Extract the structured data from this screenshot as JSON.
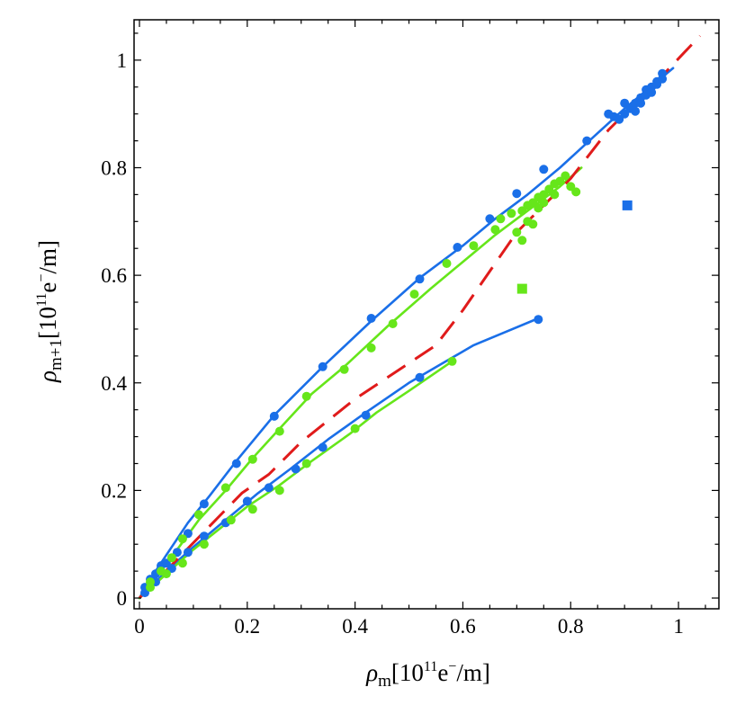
{
  "chart_data": {
    "type": "scatter",
    "xlabel": {
      "symbol": "ρ",
      "sub": "m",
      "unit_prefix": "[10",
      "exp": "11",
      "unit_body": "e",
      "charge": "−",
      "unit_suffix": "/m]"
    },
    "ylabel": {
      "symbol": "ρ",
      "sub": "m+1",
      "unit_prefix": "[10",
      "exp": "11",
      "unit_body": "e",
      "charge": "−",
      "unit_suffix": "/m]"
    },
    "xlim": [
      -0.01,
      1.075
    ],
    "ylim": [
      -0.02,
      1.075
    ],
    "x_ticks": [
      0,
      0.2,
      0.4,
      0.6,
      0.8,
      1
    ],
    "x_tick_labels": [
      "0",
      "0.2",
      "0.4",
      "0.6",
      "0.8",
      "1"
    ],
    "y_ticks": [
      0,
      0.2,
      0.4,
      0.6,
      0.8,
      1
    ],
    "y_tick_labels": [
      "0",
      "0.2",
      "0.4",
      "0.6",
      "0.8",
      "1"
    ],
    "colors": {
      "blue": "#1a6fe8",
      "green": "#66e61a",
      "red": "#e01b1b",
      "frame": "#000000"
    },
    "series": [
      {
        "name": "blue-upper-curve",
        "color": "#1a6fe8",
        "kind": "line",
        "x": [
          0,
          0.02,
          0.05,
          0.09,
          0.13,
          0.18,
          0.25,
          0.34,
          0.43,
          0.52,
          0.6,
          0.66,
          0.72,
          0.78,
          0.84,
          0.9,
          0.96,
          0.99
        ],
        "y": [
          0,
          0.035,
          0.08,
          0.14,
          0.19,
          0.255,
          0.34,
          0.43,
          0.515,
          0.595,
          0.655,
          0.705,
          0.75,
          0.8,
          0.855,
          0.91,
          0.96,
          0.985
        ]
      },
      {
        "name": "blue-upper-points",
        "color": "#1a6fe8",
        "kind": "points",
        "x": [
          0.01,
          0.02,
          0.03,
          0.04,
          0.05,
          0.07,
          0.09,
          0.12,
          0.18,
          0.25,
          0.34,
          0.43,
          0.52,
          0.59,
          0.65,
          0.7,
          0.75,
          0.83,
          0.87,
          0.88,
          0.89,
          0.9,
          0.9,
          0.91,
          0.92,
          0.92,
          0.93,
          0.93,
          0.94,
          0.94,
          0.95,
          0.95,
          0.96,
          0.96,
          0.97,
          0.97
        ],
        "y": [
          0.02,
          0.035,
          0.045,
          0.06,
          0.065,
          0.085,
          0.12,
          0.175,
          0.25,
          0.338,
          0.43,
          0.52,
          0.593,
          0.652,
          0.705,
          0.752,
          0.797,
          0.85,
          0.9,
          0.895,
          0.89,
          0.92,
          0.9,
          0.91,
          0.92,
          0.905,
          0.93,
          0.92,
          0.945,
          0.935,
          0.95,
          0.94,
          0.96,
          0.955,
          0.975,
          0.965
        ]
      },
      {
        "name": "blue-lower-curve",
        "color": "#1a6fe8",
        "kind": "line",
        "x": [
          0,
          0.05,
          0.1,
          0.16,
          0.22,
          0.28,
          0.35,
          0.42,
          0.5,
          0.56,
          0.62,
          0.68,
          0.74
        ],
        "y": [
          0,
          0.05,
          0.095,
          0.145,
          0.195,
          0.24,
          0.295,
          0.345,
          0.4,
          0.435,
          0.47,
          0.495,
          0.52
        ]
      },
      {
        "name": "blue-lower-points",
        "color": "#1a6fe8",
        "kind": "points",
        "x": [
          0.01,
          0.03,
          0.06,
          0.09,
          0.12,
          0.16,
          0.2,
          0.24,
          0.29,
          0.34,
          0.42,
          0.52,
          0.74
        ],
        "y": [
          0.01,
          0.03,
          0.055,
          0.085,
          0.115,
          0.14,
          0.18,
          0.205,
          0.24,
          0.28,
          0.34,
          0.41,
          0.518
        ]
      },
      {
        "name": "green-upper-curve",
        "color": "#66e61a",
        "kind": "line",
        "x": [
          0,
          0.03,
          0.07,
          0.11,
          0.16,
          0.21,
          0.26,
          0.32,
          0.38,
          0.46,
          0.54,
          0.6,
          0.66,
          0.72,
          0.78,
          0.82
        ],
        "y": [
          0,
          0.04,
          0.09,
          0.145,
          0.2,
          0.26,
          0.315,
          0.38,
          0.43,
          0.505,
          0.575,
          0.625,
          0.675,
          0.72,
          0.765,
          0.8
        ]
      },
      {
        "name": "green-upper-points",
        "color": "#66e61a",
        "kind": "points",
        "x": [
          0.02,
          0.04,
          0.06,
          0.08,
          0.11,
          0.16,
          0.21,
          0.26,
          0.31,
          0.38,
          0.43,
          0.47,
          0.51,
          0.57,
          0.62,
          0.66,
          0.67,
          0.69,
          0.7,
          0.71,
          0.72,
          0.72,
          0.73,
          0.74,
          0.74,
          0.75,
          0.75,
          0.76,
          0.77,
          0.77,
          0.78,
          0.79,
          0.8,
          0.81,
          0.71,
          0.73
        ],
        "y": [
          0.03,
          0.05,
          0.075,
          0.11,
          0.155,
          0.205,
          0.258,
          0.31,
          0.375,
          0.425,
          0.465,
          0.51,
          0.565,
          0.622,
          0.655,
          0.685,
          0.705,
          0.715,
          0.68,
          0.72,
          0.7,
          0.73,
          0.735,
          0.745,
          0.725,
          0.75,
          0.735,
          0.76,
          0.77,
          0.75,
          0.775,
          0.785,
          0.765,
          0.755,
          0.665,
          0.695
        ]
      },
      {
        "name": "green-lower-curve",
        "color": "#66e61a",
        "kind": "line",
        "x": [
          0,
          0.05,
          0.1,
          0.15,
          0.2,
          0.26,
          0.32,
          0.39,
          0.44,
          0.5,
          0.58
        ],
        "y": [
          0,
          0.045,
          0.09,
          0.13,
          0.17,
          0.21,
          0.255,
          0.305,
          0.345,
          0.385,
          0.44
        ]
      },
      {
        "name": "green-lower-points",
        "color": "#66e61a",
        "kind": "points",
        "x": [
          0.02,
          0.05,
          0.08,
          0.12,
          0.17,
          0.21,
          0.26,
          0.31,
          0.4,
          0.58
        ],
        "y": [
          0.02,
          0.045,
          0.065,
          0.1,
          0.145,
          0.165,
          0.2,
          0.25,
          0.315,
          0.44
        ]
      },
      {
        "name": "red-dashed-line",
        "color": "#e01b1b",
        "kind": "dashed",
        "x": [
          0,
          0.19,
          0.24,
          0.3,
          0.35,
          0.4,
          0.46,
          0.55,
          0.6,
          0.7,
          0.8,
          0.87,
          0.95,
          1.04
        ],
        "y": [
          0,
          0.195,
          0.23,
          0.29,
          0.33,
          0.37,
          0.41,
          0.47,
          0.535,
          0.68,
          0.78,
          0.87,
          0.95,
          1.045
        ]
      },
      {
        "name": "blue-square",
        "color": "#1a6fe8",
        "kind": "square",
        "x": [
          0.905
        ],
        "y": [
          0.73
        ]
      },
      {
        "name": "green-square",
        "color": "#66e61a",
        "kind": "square",
        "x": [
          0.71
        ],
        "y": [
          0.575
        ]
      }
    ]
  }
}
